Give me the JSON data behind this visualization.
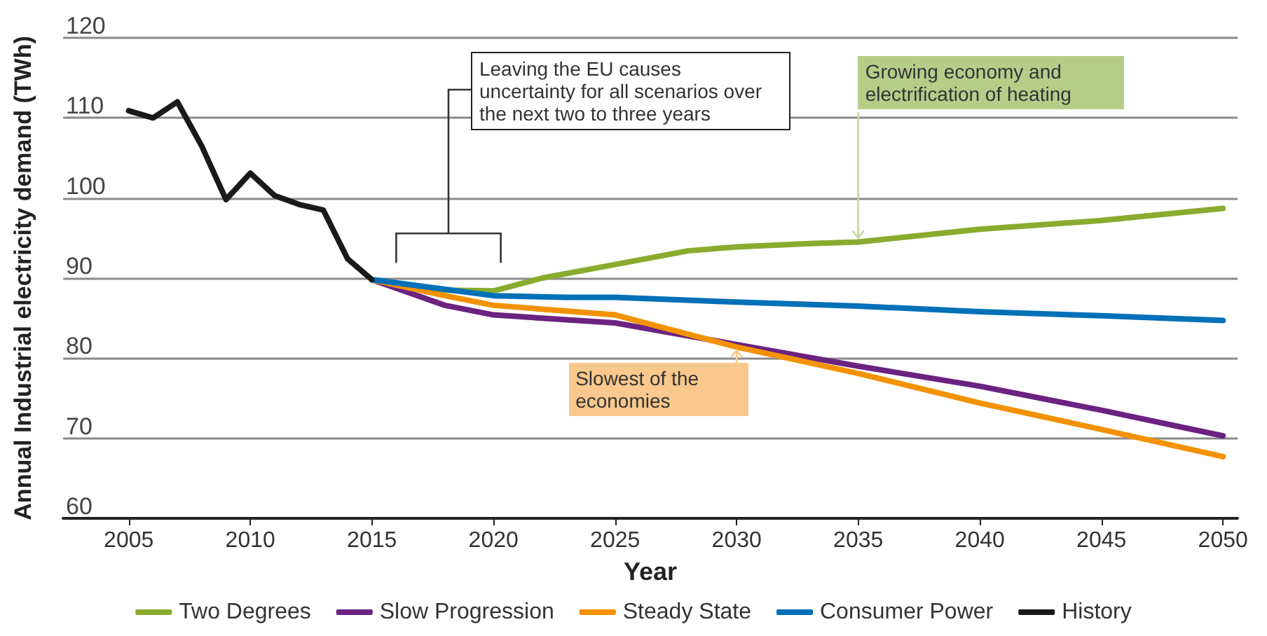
{
  "chart_data": {
    "type": "line",
    "xlabel": "Year",
    "ylabel": "Annual Industrial electricity demand (TWh)",
    "xlim": [
      2002.3,
      2050.6
    ],
    "xticks": [
      2005,
      2010,
      2015,
      2020,
      2025,
      2030,
      2035,
      2040,
      2045,
      2050
    ],
    "ylim": [
      60,
      120
    ],
    "yticks": [
      60,
      70,
      80,
      90,
      100,
      110,
      120
    ],
    "grid": "y",
    "legend": "bottom",
    "marker": "none",
    "line_style": "solid",
    "series": [
      {
        "name": "Two Degrees",
        "color": "#8aab2e",
        "x": [
          2015,
          2018,
          2020,
          2022,
          2025,
          2028,
          2030,
          2033,
          2035,
          2040,
          2045,
          2050
        ],
        "values": [
          89.8,
          88.5,
          88.4,
          90,
          91.7,
          93.4,
          93.9,
          94.3,
          94.5,
          96.1,
          97.2,
          98.7
        ]
      },
      {
        "name": "Slow Progression",
        "color": "#6b2281",
        "x": [
          2015,
          2018,
          2020,
          2025,
          2030,
          2035,
          2040,
          2045,
          2050
        ],
        "values": [
          89.8,
          86.6,
          85.4,
          84.4,
          81.7,
          79.0,
          76.5,
          73.5,
          70.3
        ]
      },
      {
        "name": "Steady State",
        "color": "#f39200",
        "x": [
          2015,
          2018,
          2020,
          2025,
          2030,
          2035,
          2040,
          2045,
          2050
        ],
        "values": [
          89.8,
          87.8,
          86.6,
          85.4,
          81.4,
          78.1,
          74.4,
          71.1,
          67.7
        ]
      },
      {
        "name": "Consumer Power",
        "color": "#0070b8",
        "x": [
          2015,
          2018,
          2020,
          2023,
          2025,
          2030,
          2035,
          2040,
          2045,
          2050
        ],
        "values": [
          89.8,
          88.6,
          87.8,
          87.6,
          87.6,
          87.0,
          86.5,
          85.8,
          85.3,
          84.7
        ]
      },
      {
        "name": "History",
        "color": "#1a1a1a",
        "x": [
          2005,
          2006,
          2007,
          2008,
          2009,
          2010,
          2011,
          2012,
          2013,
          2014,
          2015
        ],
        "values": [
          110.9,
          110,
          112,
          106.5,
          99.8,
          103.1,
          100.3,
          99.2,
          98.5,
          92.4,
          89.8
        ]
      }
    ],
    "annotations": [
      "Leaving the EU causes uncertainty for all scenarios over the next two to three years",
      {
        "text": "Growing economy and electrification of heating",
        "x": 2035,
        "y": 94.5
      },
      {
        "text": "Slowest of the economies",
        "x": 2030,
        "y": 81.5
      }
    ]
  }
}
